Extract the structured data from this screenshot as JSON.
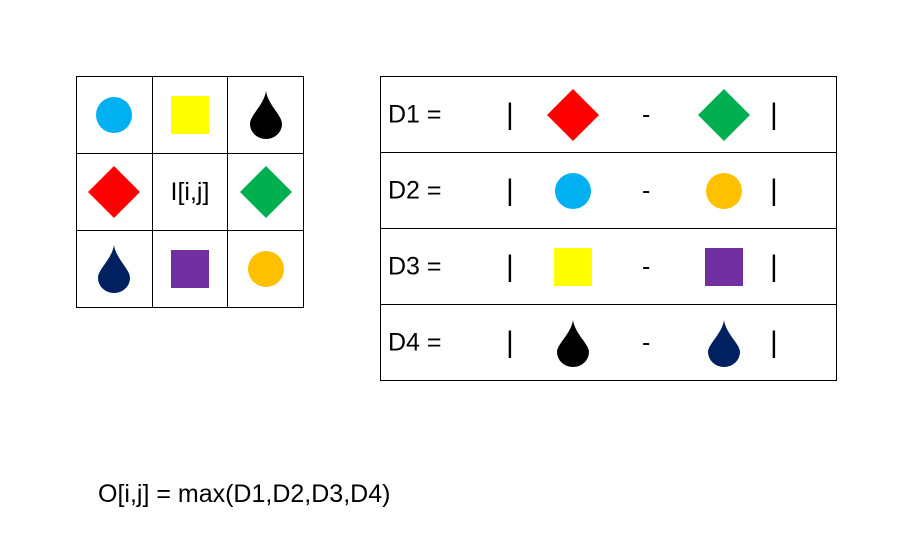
{
  "center_label": "I[i,j]",
  "rows": [
    {
      "label": "D1 =",
      "bar": "|",
      "minus": "-"
    },
    {
      "label": "D2 =",
      "bar": "|",
      "minus": "-"
    },
    {
      "label": "D3 =",
      "bar": "|",
      "minus": "-"
    },
    {
      "label": "D4 =",
      "bar": "|",
      "minus": "-"
    }
  ],
  "formula": "O[i,j] = max(D1,D2,D3,D4)",
  "colors": {
    "cyan": "#00B0F0",
    "yellow": "#FFFF00",
    "black": "#000000",
    "red": "#FF0000",
    "green": "#00B050",
    "navy": "#002060",
    "purple": "#7030A0",
    "orange": "#FFC000"
  }
}
